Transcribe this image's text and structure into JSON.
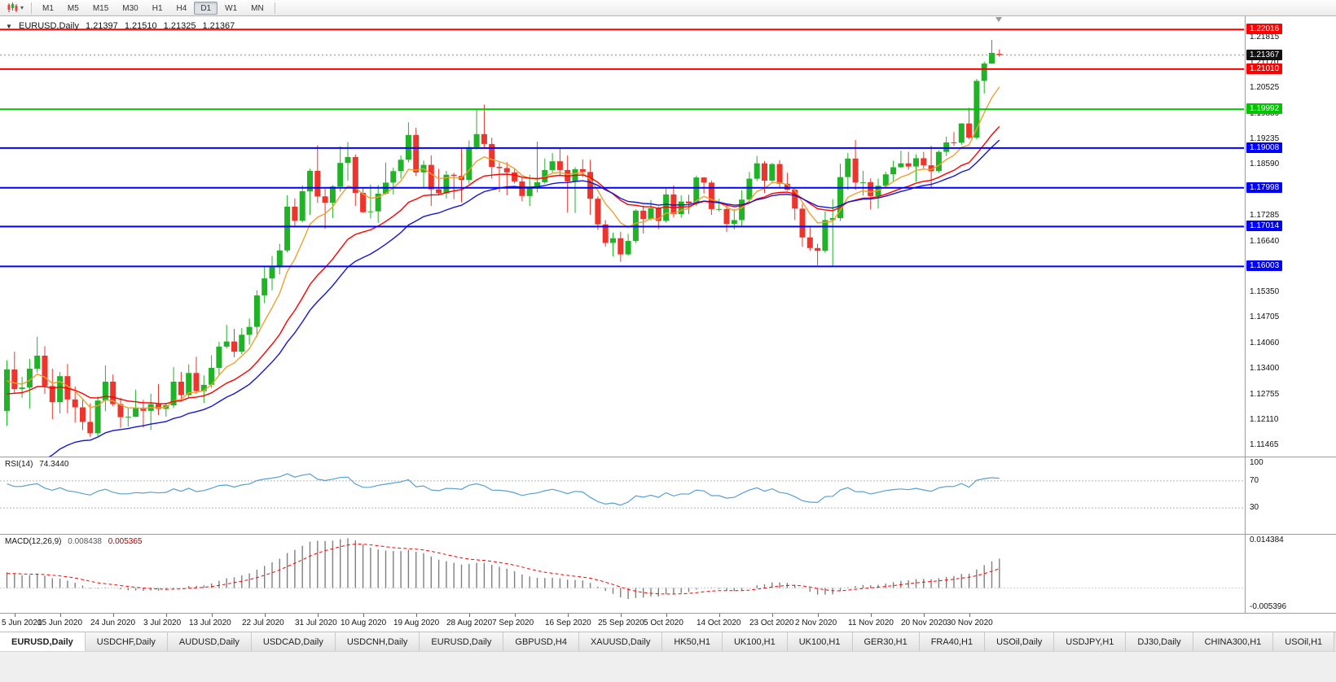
{
  "colors": {
    "bull": "#21b327",
    "bear": "#ec352c",
    "background": "#ffffff",
    "current_price_box": "#101010"
  },
  "toolbar": {
    "timeframes": [
      "M1",
      "M5",
      "M15",
      "M30",
      "H1",
      "H4",
      "D1",
      "W1",
      "MN"
    ],
    "active_timeframe": "D1",
    "chart_type_icon": "candlestick-chart-icon"
  },
  "chart_header": {
    "symbol_period": "EURUSD,Daily",
    "open": "1.21397",
    "high": "1.21510",
    "low": "1.21325",
    "close": "1.21367"
  },
  "bottom_tabs": {
    "active_index": 0,
    "tabs": [
      "EURUSD,Daily",
      "USDCHF,Daily",
      "AUDUSD,Daily",
      "USDCAD,Daily",
      "USDCNH,Daily",
      "EURUSD,Daily",
      "GBPUSD,H4",
      "XAUUSD,Daily",
      "HK50,H1",
      "UK100,H1",
      "UK100,H1",
      "GER30,H1",
      "FRA40,H1",
      "USOil,Daily",
      "USDJPY,H1",
      "DJ30,Daily",
      "CHINA300,H1",
      "USOil,H1"
    ]
  },
  "chart_data": {
    "type": "candlestick",
    "symbol": "EURUSD",
    "timeframe": "Daily",
    "title": "EURUSD,Daily 1.21397 1.21510 1.21325 1.21367",
    "price_axis_range": {
      "max": 1.2235,
      "min": 1.1118
    },
    "current_price": 1.21367,
    "price_ticks": [
      "1.21815",
      "1.21170",
      "1.20525",
      "1.19880",
      "1.19235",
      "1.18590",
      "1.17285",
      "1.16640",
      "1.15350",
      "1.14705",
      "1.14060",
      "1.13400",
      "1.12755",
      "1.12110",
      "1.11465"
    ],
    "horizontal_levels": [
      {
        "price": 1.22016,
        "color": "#fe0000"
      },
      {
        "price": 1.2101,
        "color": "#fe0000"
      },
      {
        "price": 1.19992,
        "color": "#00c400"
      },
      {
        "price": 1.19008,
        "color": "#0000fe"
      },
      {
        "price": 1.17998,
        "color": "#0000fe"
      },
      {
        "price": 1.17014,
        "color": "#0000fe"
      },
      {
        "price": 1.16003,
        "color": "#0000fe"
      }
    ],
    "moving_averages": [
      {
        "name": "ma-fast",
        "color": "#f0a030",
        "period": 7,
        "seed": 1.13
      },
      {
        "name": "ma-medium",
        "color": "#fe0000",
        "period": 18,
        "seed": 1.127
      },
      {
        "name": "ma-slow",
        "color": "#1616d6",
        "period": 25,
        "seed": 1.098
      }
    ],
    "time_labels": [
      {
        "text": "5 Jun 2020",
        "index": 1
      },
      {
        "text": "15 Jun 2020",
        "index": 7
      },
      {
        "text": "24 Jun 2020",
        "index": 14
      },
      {
        "text": "3 Jul 2020",
        "index": 21
      },
      {
        "text": "13 Jul 2020",
        "index": 27
      },
      {
        "text": "22 Jul 2020",
        "index": 34
      },
      {
        "text": "31 Jul 2020",
        "index": 41
      },
      {
        "text": "10 Aug 2020",
        "index": 47
      },
      {
        "text": "19 Aug 2020",
        "index": 54
      },
      {
        "text": "28 Aug 2020",
        "index": 61
      },
      {
        "text": "7 Sep 2020",
        "index": 67
      },
      {
        "text": "16 Sep 2020",
        "index": 74
      },
      {
        "text": "25 Sep 2020",
        "index": 81
      },
      {
        "text": "5 Oct 2020",
        "index": 87
      },
      {
        "text": "14 Oct 2020",
        "index": 94
      },
      {
        "text": "23 Oct 2020",
        "index": 101
      },
      {
        "text": "2 Nov 2020",
        "index": 107
      },
      {
        "text": "11 Nov 2020",
        "index": 114
      },
      {
        "text": "20 Nov 2020",
        "index": 121
      },
      {
        "text": "30 Nov 2020",
        "index": 127
      }
    ],
    "indicators": {
      "rsi": {
        "label": "RSI(14)",
        "value": "74.3440",
        "period": 14,
        "levels": [
          100,
          70,
          30
        ],
        "range": [
          0,
          100
        ],
        "color": "#57a0d3",
        "seed_avg_gain": 0.004,
        "seed_avg_loss": 0.0021
      },
      "macd": {
        "label": "MACD(12,26,9)",
        "values": [
          "0.008438",
          "0.005365"
        ],
        "fast": 12,
        "slow": 26,
        "signal": 9,
        "seed_fast": 1.13,
        "seed_slow": 1.1255,
        "seed_signal": 0.004,
        "range": [
          -0.005396,
          0.014384
        ],
        "axis_labels": [
          "0.014384",
          "-0.005396"
        ],
        "histogram_color": "#7f7f7f",
        "signal_color": "#fe0000"
      }
    },
    "candles": [
      [
        1.1234,
        1.1362,
        1.1196,
        1.1339
      ],
      [
        1.1339,
        1.1384,
        1.1279,
        1.1289
      ],
      [
        1.1289,
        1.132,
        1.1267,
        1.1293
      ],
      [
        1.1293,
        1.1366,
        1.124,
        1.1341
      ],
      [
        1.1341,
        1.1422,
        1.1331,
        1.1374
      ],
      [
        1.1374,
        1.1398,
        1.1277,
        1.1297
      ],
      [
        1.1297,
        1.1341,
        1.1213,
        1.1256
      ],
      [
        1.1256,
        1.1333,
        1.1227,
        1.1322
      ],
      [
        1.1322,
        1.1353,
        1.1228,
        1.1263
      ],
      [
        1.1263,
        1.1296,
        1.1204,
        1.1243
      ],
      [
        1.1243,
        1.1262,
        1.1185,
        1.1206
      ],
      [
        1.1206,
        1.1253,
        1.1168,
        1.1177
      ],
      [
        1.1177,
        1.1271,
        1.1168,
        1.126
      ],
      [
        1.126,
        1.1349,
        1.1233,
        1.1308
      ],
      [
        1.1308,
        1.1326,
        1.1246,
        1.1251
      ],
      [
        1.1251,
        1.1267,
        1.1191,
        1.1218
      ],
      [
        1.1218,
        1.124,
        1.1194,
        1.1219
      ],
      [
        1.1219,
        1.1288,
        1.1218,
        1.1242
      ],
      [
        1.1242,
        1.1262,
        1.1191,
        1.1234
      ],
      [
        1.1234,
        1.1277,
        1.1185,
        1.1251
      ],
      [
        1.1251,
        1.1302,
        1.1223,
        1.1239
      ],
      [
        1.1239,
        1.1254,
        1.1219,
        1.1248
      ],
      [
        1.1248,
        1.1345,
        1.1241,
        1.1308
      ],
      [
        1.1308,
        1.1333,
        1.1259,
        1.1274
      ],
      [
        1.1274,
        1.1352,
        1.1266,
        1.133
      ],
      [
        1.133,
        1.1371,
        1.1277,
        1.1284
      ],
      [
        1.1284,
        1.1324,
        1.1254,
        1.13
      ],
      [
        1.13,
        1.1375,
        1.1292,
        1.1343
      ],
      [
        1.1343,
        1.1409,
        1.1325,
        1.1397
      ],
      [
        1.1397,
        1.1452,
        1.1392,
        1.141
      ],
      [
        1.141,
        1.1442,
        1.137,
        1.1384
      ],
      [
        1.1384,
        1.1444,
        1.1378,
        1.1427
      ],
      [
        1.1427,
        1.1468,
        1.1402,
        1.1447
      ],
      [
        1.1447,
        1.154,
        1.1422,
        1.1527
      ],
      [
        1.1527,
        1.1601,
        1.1507,
        1.157
      ],
      [
        1.157,
        1.1627,
        1.154,
        1.1598
      ],
      [
        1.1598,
        1.1658,
        1.158,
        1.1641
      ],
      [
        1.1641,
        1.1781,
        1.1636,
        1.1752
      ],
      [
        1.1752,
        1.1773,
        1.17,
        1.1716
      ],
      [
        1.1716,
        1.1806,
        1.1712,
        1.1791
      ],
      [
        1.1791,
        1.1848,
        1.1731,
        1.1843
      ],
      [
        1.1843,
        1.1908,
        1.1762,
        1.1778
      ],
      [
        1.1778,
        1.1797,
        1.1696,
        1.1762
      ],
      [
        1.1762,
        1.1807,
        1.1723,
        1.1803
      ],
      [
        1.1803,
        1.1905,
        1.179,
        1.1863
      ],
      [
        1.1863,
        1.1916,
        1.1818,
        1.1878
      ],
      [
        1.1878,
        1.1884,
        1.1754,
        1.1787
      ],
      [
        1.1787,
        1.1798,
        1.1736,
        1.1738
      ],
      [
        1.1738,
        1.1808,
        1.1722,
        1.174
      ],
      [
        1.174,
        1.1807,
        1.1711,
        1.1785
      ],
      [
        1.1785,
        1.1864,
        1.1782,
        1.1813
      ],
      [
        1.1813,
        1.1851,
        1.1783,
        1.1842
      ],
      [
        1.1842,
        1.1882,
        1.1823,
        1.1871
      ],
      [
        1.1871,
        1.1966,
        1.1864,
        1.1934
      ],
      [
        1.1934,
        1.1952,
        1.183,
        1.1839
      ],
      [
        1.1839,
        1.1869,
        1.1801,
        1.1858
      ],
      [
        1.1858,
        1.1882,
        1.1754,
        1.1796
      ],
      [
        1.1796,
        1.1848,
        1.1783,
        1.1786
      ],
      [
        1.1786,
        1.1843,
        1.1773,
        1.1833
      ],
      [
        1.1833,
        1.1838,
        1.1771,
        1.183
      ],
      [
        1.183,
        1.19,
        1.1763,
        1.182
      ],
      [
        1.182,
        1.192,
        1.181,
        1.1903
      ],
      [
        1.1903,
        1.1997,
        1.1897,
        1.1936
      ],
      [
        1.1936,
        1.2011,
        1.1901,
        1.1911
      ],
      [
        1.1911,
        1.1927,
        1.1823,
        1.1853
      ],
      [
        1.1853,
        1.1864,
        1.1789,
        1.185
      ],
      [
        1.185,
        1.1865,
        1.1781,
        1.1839
      ],
      [
        1.1839,
        1.1849,
        1.1811,
        1.1816
      ],
      [
        1.1816,
        1.1827,
        1.1766,
        1.1779
      ],
      [
        1.1779,
        1.1833,
        1.1753,
        1.1801
      ],
      [
        1.1801,
        1.1917,
        1.1788,
        1.1814
      ],
      [
        1.1814,
        1.1874,
        1.181,
        1.1845
      ],
      [
        1.1845,
        1.1888,
        1.1839,
        1.1867
      ],
      [
        1.1867,
        1.1899,
        1.1829,
        1.1845
      ],
      [
        1.1845,
        1.1882,
        1.1737,
        1.1816
      ],
      [
        1.1816,
        1.1852,
        1.1736,
        1.1847
      ],
      [
        1.1847,
        1.1872,
        1.1827,
        1.184
      ],
      [
        1.184,
        1.1871,
        1.1731,
        1.1772
      ],
      [
        1.1772,
        1.1778,
        1.1693,
        1.1707
      ],
      [
        1.1707,
        1.1718,
        1.1651,
        1.166
      ],
      [
        1.166,
        1.1686,
        1.1626,
        1.1672
      ],
      [
        1.1672,
        1.1688,
        1.1612,
        1.1631
      ],
      [
        1.1631,
        1.1683,
        1.1628,
        1.1665
      ],
      [
        1.1665,
        1.1745,
        1.166,
        1.1742
      ],
      [
        1.1742,
        1.1755,
        1.1684,
        1.1721
      ],
      [
        1.1721,
        1.1769,
        1.1717,
        1.1748
      ],
      [
        1.1748,
        1.1752,
        1.1695,
        1.1716
      ],
      [
        1.1716,
        1.1797,
        1.1711,
        1.1783
      ],
      [
        1.1783,
        1.1806,
        1.1725,
        1.1733
      ],
      [
        1.1733,
        1.1781,
        1.1724,
        1.1765
      ],
      [
        1.1765,
        1.1782,
        1.1733,
        1.176
      ],
      [
        1.176,
        1.1831,
        1.1754,
        1.1826
      ],
      [
        1.1826,
        1.1827,
        1.1785,
        1.1813
      ],
      [
        1.1813,
        1.1818,
        1.1731,
        1.1746
      ],
      [
        1.1746,
        1.1772,
        1.174,
        1.1746
      ],
      [
        1.1746,
        1.1758,
        1.1688,
        1.1708
      ],
      [
        1.1708,
        1.1746,
        1.1694,
        1.1718
      ],
      [
        1.1718,
        1.1794,
        1.1703,
        1.177
      ],
      [
        1.177,
        1.184,
        1.176,
        1.1823
      ],
      [
        1.1823,
        1.1881,
        1.1817,
        1.1862
      ],
      [
        1.1862,
        1.1868,
        1.1787,
        1.1818
      ],
      [
        1.1818,
        1.1863,
        1.1812,
        1.186
      ],
      [
        1.186,
        1.187,
        1.1802,
        1.181
      ],
      [
        1.181,
        1.1838,
        1.1793,
        1.1795
      ],
      [
        1.1795,
        1.18,
        1.1718,
        1.1747
      ],
      [
        1.1747,
        1.1759,
        1.165,
        1.1674
      ],
      [
        1.1674,
        1.1704,
        1.164,
        1.1647
      ],
      [
        1.1647,
        1.1658,
        1.1603,
        1.164
      ],
      [
        1.164,
        1.174,
        1.1635,
        1.1718
      ],
      [
        1.1718,
        1.1771,
        1.1602,
        1.1723
      ],
      [
        1.1723,
        1.1861,
        1.1716,
        1.1827
      ],
      [
        1.1827,
        1.1888,
        1.1795,
        1.1874
      ],
      [
        1.1874,
        1.1921,
        1.1795,
        1.1813
      ],
      [
        1.1813,
        1.1843,
        1.178,
        1.1814
      ],
      [
        1.1814,
        1.1824,
        1.1745,
        1.1779
      ],
      [
        1.1779,
        1.1823,
        1.1747,
        1.1805
      ],
      [
        1.1805,
        1.1841,
        1.1799,
        1.1834
      ],
      [
        1.1834,
        1.1869,
        1.1814,
        1.1852
      ],
      [
        1.1852,
        1.1894,
        1.185,
        1.1862
      ],
      [
        1.1862,
        1.1891,
        1.1846,
        1.1854
      ],
      [
        1.1854,
        1.1885,
        1.1815,
        1.1875
      ],
      [
        1.1875,
        1.1891,
        1.1849,
        1.1857
      ],
      [
        1.1857,
        1.1906,
        1.18,
        1.1842
      ],
      [
        1.1842,
        1.1895,
        1.1838,
        1.1891
      ],
      [
        1.1891,
        1.193,
        1.188,
        1.1915
      ],
      [
        1.1915,
        1.1941,
        1.1906,
        1.1914
      ],
      [
        1.1914,
        1.1964,
        1.1909,
        1.1963
      ],
      [
        1.1963,
        1.2003,
        1.1923,
        1.1927
      ],
      [
        1.1927,
        1.2076,
        1.1923,
        1.2071
      ],
      [
        1.2071,
        1.212,
        1.2039,
        1.2115
      ],
      [
        1.2115,
        1.2175,
        1.2114,
        1.2142
      ],
      [
        1.21397,
        1.2151,
        1.21325,
        1.21367
      ]
    ]
  }
}
